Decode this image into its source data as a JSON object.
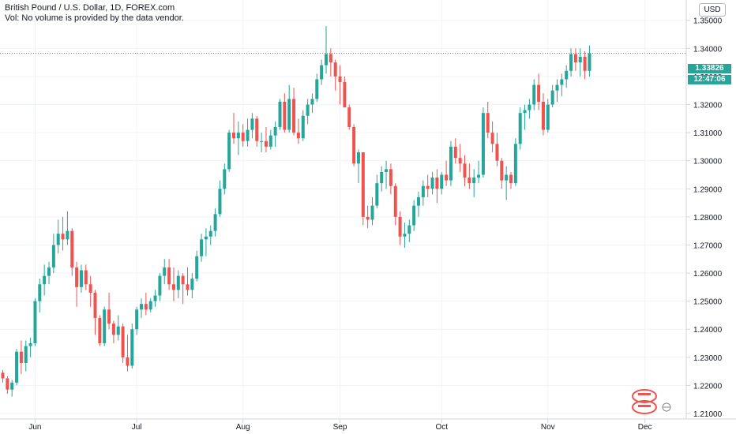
{
  "legend": {
    "title": "British Pound / U.S. Dollar, 1D, FOREX.com",
    "volume_note": "Vol: No volume is provided by the data vendor."
  },
  "currency": "USD",
  "last_price": "1.33826",
  "countdown": "12:47:06",
  "colors": {
    "up": "#26a69a",
    "down": "#ef5350",
    "grid": "#f0f3fa",
    "axis_text": "#131722",
    "price_line": "#26a69a"
  },
  "chart_data": {
    "type": "candlestick",
    "symbol": "GBPUSD",
    "interval": "1D",
    "x_labels": [
      {
        "label": "Jun",
        "index": 7
      },
      {
        "label": "Jul",
        "index": 29
      },
      {
        "label": "Aug",
        "index": 52
      },
      {
        "label": "Sep",
        "index": 73
      },
      {
        "label": "Oct",
        "index": 95
      },
      {
        "label": "Nov",
        "index": 118
      },
      {
        "label": "Dec",
        "index": 139
      }
    ],
    "y_ticks": [
      "1.35000",
      "1.34000",
      "1.33000",
      "1.32000",
      "1.31000",
      "1.30000",
      "1.29000",
      "1.28000",
      "1.27000",
      "1.26000",
      "1.25000",
      "1.24000",
      "1.23000",
      "1.22000",
      "1.21000"
    ],
    "ylim": [
      1.2055,
      1.3533
    ],
    "last_price": 1.33826,
    "candles": [
      [
        1.2245,
        1.2255,
        1.221,
        1.2225
      ],
      [
        1.2225,
        1.2232,
        1.217,
        1.2185
      ],
      [
        1.2185,
        1.222,
        1.216,
        1.221
      ],
      [
        1.221,
        1.233,
        1.22,
        1.232
      ],
      [
        1.232,
        1.236,
        1.224,
        1.228
      ],
      [
        1.228,
        1.236,
        1.225,
        1.234
      ],
      [
        1.234,
        1.237,
        1.23,
        1.235
      ],
      [
        1.235,
        1.251,
        1.234,
        1.25
      ],
      [
        1.25,
        1.258,
        1.246,
        1.256
      ],
      [
        1.256,
        1.263,
        1.252,
        1.259
      ],
      [
        1.259,
        1.264,
        1.256,
        1.262
      ],
      [
        1.262,
        1.274,
        1.26,
        1.27
      ],
      [
        1.27,
        1.279,
        1.267,
        1.274
      ],
      [
        1.274,
        1.28,
        1.268,
        1.272
      ],
      [
        1.272,
        1.282,
        1.27,
        1.275
      ],
      [
        1.275,
        1.276,
        1.259,
        1.262
      ],
      [
        1.262,
        1.264,
        1.248,
        1.255
      ],
      [
        1.255,
        1.263,
        1.253,
        1.261
      ],
      [
        1.261,
        1.263,
        1.254,
        1.256
      ],
      [
        1.256,
        1.259,
        1.248,
        1.253
      ],
      [
        1.253,
        1.254,
        1.238,
        1.244
      ],
      [
        1.244,
        1.245,
        1.234,
        1.235
      ],
      [
        1.235,
        1.248,
        1.234,
        1.247
      ],
      [
        1.247,
        1.253,
        1.24,
        1.242
      ],
      [
        1.242,
        1.243,
        1.235,
        1.238
      ],
      [
        1.238,
        1.245,
        1.236,
        1.241
      ],
      [
        1.241,
        1.242,
        1.228,
        1.23
      ],
      [
        1.23,
        1.238,
        1.225,
        1.227
      ],
      [
        1.227,
        1.242,
        1.226,
        1.24
      ],
      [
        1.24,
        1.248,
        1.238,
        1.247
      ],
      [
        1.247,
        1.251,
        1.244,
        1.249
      ],
      [
        1.249,
        1.253,
        1.245,
        1.247
      ],
      [
        1.247,
        1.251,
        1.246,
        1.25
      ],
      [
        1.25,
        1.254,
        1.248,
        1.252
      ],
      [
        1.252,
        1.26,
        1.25,
        1.259
      ],
      [
        1.259,
        1.265,
        1.256,
        1.262
      ],
      [
        1.262,
        1.265,
        1.254,
        1.256
      ],
      [
        1.256,
        1.262,
        1.25,
        1.254
      ],
      [
        1.254,
        1.261,
        1.251,
        1.259
      ],
      [
        1.259,
        1.26,
        1.249,
        1.256
      ],
      [
        1.256,
        1.262,
        1.252,
        1.254
      ],
      [
        1.254,
        1.26,
        1.251,
        1.258
      ],
      [
        1.258,
        1.268,
        1.257,
        1.266
      ],
      [
        1.266,
        1.274,
        1.264,
        1.272
      ],
      [
        1.272,
        1.276,
        1.266,
        1.273
      ],
      [
        1.273,
        1.277,
        1.27,
        1.275
      ],
      [
        1.275,
        1.283,
        1.273,
        1.281
      ],
      [
        1.281,
        1.293,
        1.28,
        1.29
      ],
      [
        1.29,
        1.299,
        1.288,
        1.297
      ],
      [
        1.297,
        1.311,
        1.296,
        1.31
      ],
      [
        1.31,
        1.317,
        1.306,
        1.308
      ],
      [
        1.308,
        1.314,
        1.302,
        1.31
      ],
      [
        1.31,
        1.313,
        1.305,
        1.307
      ],
      [
        1.307,
        1.315,
        1.305,
        1.311
      ],
      [
        1.311,
        1.317,
        1.308,
        1.315
      ],
      [
        1.315,
        1.316,
        1.305,
        1.307
      ],
      [
        1.307,
        1.31,
        1.303,
        1.307
      ],
      [
        1.307,
        1.312,
        1.303,
        1.305
      ],
      [
        1.305,
        1.311,
        1.304,
        1.309
      ],
      [
        1.309,
        1.314,
        1.305,
        1.312
      ],
      [
        1.312,
        1.322,
        1.311,
        1.321
      ],
      [
        1.321,
        1.324,
        1.31,
        1.311
      ],
      [
        1.311,
        1.327,
        1.31,
        1.322
      ],
      [
        1.322,
        1.326,
        1.309,
        1.31
      ],
      [
        1.31,
        1.315,
        1.306,
        1.308
      ],
      [
        1.308,
        1.318,
        1.307,
        1.316
      ],
      [
        1.316,
        1.322,
        1.313,
        1.32
      ],
      [
        1.32,
        1.324,
        1.317,
        1.322
      ],
      [
        1.322,
        1.331,
        1.321,
        1.329
      ],
      [
        1.329,
        1.336,
        1.327,
        1.334
      ],
      [
        1.334,
        1.348,
        1.331,
        1.338
      ],
      [
        1.338,
        1.34,
        1.33,
        1.335
      ],
      [
        1.335,
        1.336,
        1.325,
        1.33
      ],
      [
        1.33,
        1.334,
        1.32,
        1.328
      ],
      [
        1.328,
        1.33,
        1.32,
        1.319
      ],
      [
        1.319,
        1.32,
        1.311,
        1.312
      ],
      [
        1.312,
        1.313,
        1.298,
        1.299
      ],
      [
        1.299,
        1.304,
        1.292,
        1.303
      ],
      [
        1.303,
        1.303,
        1.277,
        1.28
      ],
      [
        1.28,
        1.284,
        1.276,
        1.279
      ],
      [
        1.279,
        1.287,
        1.277,
        1.284
      ],
      [
        1.284,
        1.295,
        1.283,
        1.292
      ],
      [
        1.292,
        1.298,
        1.289,
        1.296
      ],
      [
        1.296,
        1.3,
        1.29,
        1.297
      ],
      [
        1.297,
        1.299,
        1.288,
        1.291
      ],
      [
        1.291,
        1.292,
        1.277,
        1.28
      ],
      [
        1.28,
        1.282,
        1.27,
        1.273
      ],
      [
        1.273,
        1.278,
        1.269,
        1.274
      ],
      [
        1.274,
        1.279,
        1.271,
        1.277
      ],
      [
        1.277,
        1.286,
        1.275,
        1.284
      ],
      [
        1.284,
        1.289,
        1.28,
        1.287
      ],
      [
        1.287,
        1.293,
        1.284,
        1.291
      ],
      [
        1.291,
        1.295,
        1.287,
        1.29
      ],
      [
        1.29,
        1.296,
        1.288,
        1.294
      ],
      [
        1.294,
        1.297,
        1.285,
        1.29
      ],
      [
        1.29,
        1.296,
        1.288,
        1.295
      ],
      [
        1.295,
        1.3,
        1.291,
        1.293
      ],
      [
        1.293,
        1.307,
        1.291,
        1.305
      ],
      [
        1.305,
        1.308,
        1.299,
        1.301
      ],
      [
        1.301,
        1.306,
        1.296,
        1.299
      ],
      [
        1.299,
        1.302,
        1.291,
        1.294
      ],
      [
        1.294,
        1.299,
        1.29,
        1.292
      ],
      [
        1.292,
        1.297,
        1.287,
        1.294
      ],
      [
        1.294,
        1.3,
        1.292,
        1.295
      ],
      [
        1.295,
        1.319,
        1.294,
        1.317
      ],
      [
        1.317,
        1.321,
        1.308,
        1.31
      ],
      [
        1.31,
        1.314,
        1.303,
        1.306
      ],
      [
        1.306,
        1.31,
        1.298,
        1.3
      ],
      [
        1.3,
        1.301,
        1.29,
        1.293
      ],
      [
        1.293,
        1.298,
        1.286,
        1.295
      ],
      [
        1.295,
        1.296,
        1.29,
        1.292
      ],
      [
        1.292,
        1.308,
        1.291,
        1.306
      ],
      [
        1.306,
        1.319,
        1.304,
        1.317
      ],
      [
        1.317,
        1.32,
        1.311,
        1.318
      ],
      [
        1.318,
        1.322,
        1.315,
        1.32
      ],
      [
        1.32,
        1.329,
        1.318,
        1.327
      ],
      [
        1.327,
        1.331,
        1.318,
        1.321
      ],
      [
        1.321,
        1.324,
        1.309,
        1.311
      ],
      [
        1.311,
        1.322,
        1.31,
        1.32
      ],
      [
        1.32,
        1.327,
        1.319,
        1.325
      ],
      [
        1.325,
        1.329,
        1.321,
        1.327
      ],
      [
        1.327,
        1.331,
        1.323,
        1.329
      ],
      [
        1.329,
        1.334,
        1.326,
        1.332
      ],
      [
        1.332,
        1.34,
        1.33,
        1.338
      ],
      [
        1.338,
        1.34,
        1.332,
        1.335
      ],
      [
        1.335,
        1.34,
        1.33,
        1.337
      ],
      [
        1.337,
        1.339,
        1.329,
        1.332
      ],
      [
        1.332,
        1.341,
        1.33,
        1.3383
      ]
    ]
  }
}
